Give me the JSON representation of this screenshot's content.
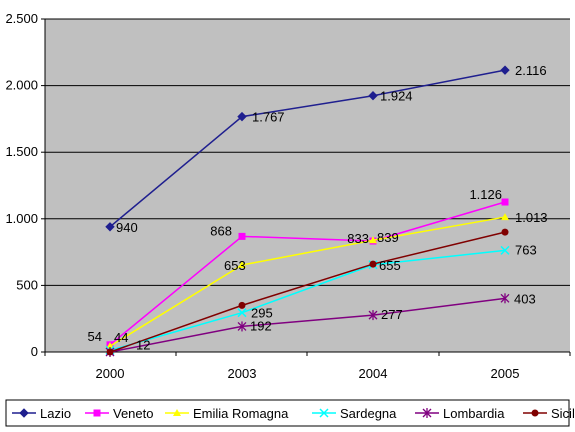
{
  "chart_data": {
    "type": "line",
    "x": [
      "2000",
      "2003",
      "2004",
      "2005"
    ],
    "ylim": [
      0,
      2500
    ],
    "yticks": [
      0,
      500,
      1000,
      1500,
      2000,
      2500
    ],
    "ytick_labels": [
      "0",
      "500",
      "1.000",
      "1.500",
      "2.000",
      "2.500"
    ],
    "grid": true,
    "legend_position": "bottom",
    "plot_background": "#c0c0c0",
    "series": [
      {
        "name": "Lazio",
        "color": "#1f1f8f",
        "marker": "diamond",
        "values": [
          940,
          1767,
          1924,
          2116
        ],
        "labels": [
          "940",
          "1.767",
          "1.924",
          "2.116"
        ]
      },
      {
        "name": "Veneto",
        "color": "#ff00ff",
        "marker": "square",
        "values": [
          54,
          868,
          833,
          1126
        ],
        "labels": [
          "54",
          "868",
          "833",
          "1.126"
        ]
      },
      {
        "name": "Emilia Romagna",
        "color": "#ffff00",
        "marker": "triangle",
        "values": [
          44,
          653,
          839,
          1013
        ],
        "labels": [
          "44",
          "653",
          "839",
          "1.013"
        ]
      },
      {
        "name": "Sardegna",
        "color": "#00ffff",
        "marker": "x",
        "values": [
          12,
          295,
          655,
          763
        ],
        "labels": [
          "12",
          "295",
          "655",
          "763"
        ]
      },
      {
        "name": "Lombardia",
        "color": "#800080",
        "marker": "star",
        "values": [
          0,
          192,
          277,
          403
        ],
        "labels": [
          "",
          "192",
          "277",
          "403"
        ]
      },
      {
        "name": "Sicilia",
        "color": "#800000",
        "marker": "circle",
        "values": [
          0,
          350,
          660,
          900
        ],
        "labels": [
          "",
          "",
          "",
          ""
        ]
      }
    ]
  }
}
